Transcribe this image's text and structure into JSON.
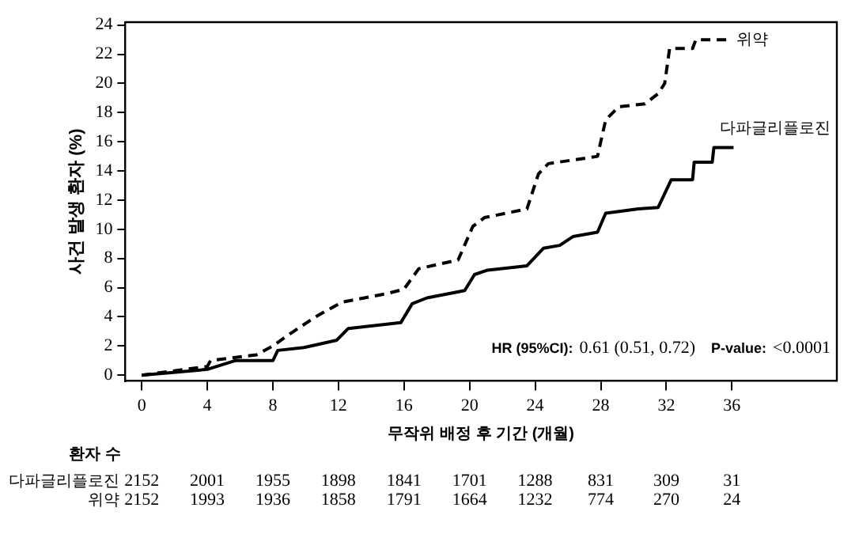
{
  "chart_data": {
    "type": "line",
    "xlabel": "무작위 배정 후 기간 (개월)",
    "ylabel": "사건 발생 환자 (%)",
    "series": [
      {
        "name": "다파글리플로진",
        "color": "#000000",
        "line_style": "solid",
        "x": [
          0,
          4,
          5.7,
          8,
          8.3,
          9.9,
          11.9,
          12.6,
          15.8,
          16.5,
          17.4,
          19.7,
          20.3,
          21.1,
          23.5,
          24.5,
          25.5,
          26.3,
          27.8,
          28.3,
          30.3,
          31.5,
          32.3,
          33.6,
          33.7,
          34.8,
          34.9,
          36.1
        ],
        "values": [
          0,
          0.4,
          1.0,
          1.0,
          1.7,
          1.9,
          2.4,
          3.2,
          3.6,
          4.9,
          5.3,
          5.8,
          6.9,
          7.2,
          7.5,
          8.7,
          8.9,
          9.5,
          9.8,
          11.1,
          11.4,
          11.5,
          13.4,
          13.4,
          14.6,
          14.6,
          15.6,
          15.6
        ]
      },
      {
        "name": "위약",
        "color": "#000000",
        "line_style": "dashed",
        "x": [
          0,
          4,
          4.2,
          7,
          8,
          9,
          10.6,
          12.2,
          15,
          16,
          16.9,
          19.3,
          20.2,
          20.9,
          23.5,
          24.2,
          24.8,
          27.8,
          28.3,
          29.1,
          30.7,
          31.5,
          31.9,
          32.2,
          33.6,
          33.8,
          35.7
        ],
        "values": [
          0,
          0.6,
          1.0,
          1.4,
          2.0,
          2.8,
          4.0,
          5.0,
          5.6,
          5.9,
          7.3,
          7.9,
          10.2,
          10.8,
          11.4,
          13.8,
          14.5,
          15.0,
          17.5,
          18.4,
          18.6,
          19.3,
          20.0,
          22.4,
          22.4,
          23.0,
          23.0
        ]
      }
    ],
    "xlim": [
      -1,
      42.4
    ],
    "xticks": [
      0,
      4,
      8,
      12,
      16,
      20,
      24,
      28,
      32,
      36
    ],
    "ylim": [
      -0.4,
      24.2
    ],
    "yticks": [
      0,
      2,
      4,
      6,
      8,
      10,
      12,
      14,
      16,
      18,
      20,
      22,
      24
    ],
    "grid": false,
    "legend": false,
    "marker": "none",
    "annotations": [
      "HR (95%CI):",
      "0.61 (0.51, 0.72)",
      "P-value:",
      "<0.0001",
      "환자 수",
      "다파글리플로진",
      "2152",
      "2001",
      "1955",
      "1898",
      "1841",
      "1701",
      "1288",
      "831",
      "309",
      "31",
      "위약",
      "2152",
      "1993",
      "1936",
      "1858",
      "1791",
      "1664",
      "1232",
      "774",
      "270",
      "24"
    ]
  }
}
